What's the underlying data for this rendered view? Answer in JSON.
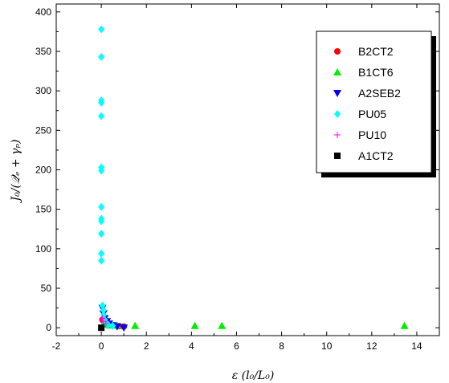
{
  "chart_data": {
    "type": "scatter",
    "xlabel": "ε (l₀/L₀)",
    "ylabel": "J₀/(𝒬ₑ + γₚ)",
    "xlim": [
      -2,
      15
    ],
    "ylim": [
      -10,
      410
    ],
    "xticks": [
      -2,
      0,
      2,
      4,
      6,
      8,
      10,
      12,
      14
    ],
    "yticks": [
      0,
      50,
      100,
      150,
      200,
      250,
      300,
      350,
      400
    ],
    "legend": "top-right",
    "grid": false,
    "series": [
      {
        "name": "B2CT2",
        "marker": "circle",
        "color": "#ff0000",
        "points": [
          [
            0.05,
            10
          ],
          [
            0.15,
            6
          ],
          [
            0.3,
            4
          ],
          [
            0.5,
            3
          ],
          [
            0.8,
            2
          ],
          [
            1.0,
            1.5
          ]
        ]
      },
      {
        "name": "B1CT6",
        "marker": "triangle-up",
        "color": "#00ee00",
        "points": [
          [
            0.1,
            4
          ],
          [
            0.4,
            3
          ],
          [
            0.7,
            3
          ],
          [
            1.5,
            2.5
          ],
          [
            4.15,
            2.5
          ],
          [
            5.35,
            2.5
          ],
          [
            13.45,
            2.5
          ]
        ]
      },
      {
        "name": "A2SEB2",
        "marker": "triangle-down",
        "color": "#0000ee",
        "points": [
          [
            0.05,
            25
          ],
          [
            0.1,
            18
          ],
          [
            0.15,
            12
          ],
          [
            0.25,
            8
          ],
          [
            0.35,
            5
          ],
          [
            0.5,
            3
          ],
          [
            0.7,
            1.5
          ],
          [
            1.0,
            0
          ]
        ]
      },
      {
        "name": "PU05",
        "marker": "diamond",
        "color": "#00ffff",
        "points": [
          [
            0,
            378
          ],
          [
            0,
            343
          ],
          [
            0,
            288
          ],
          [
            0,
            285
          ],
          [
            0,
            268
          ],
          [
            0,
            203
          ],
          [
            0,
            199
          ],
          [
            0,
            153
          ],
          [
            0,
            138
          ],
          [
            0,
            135
          ],
          [
            0,
            119
          ],
          [
            0,
            94
          ],
          [
            0,
            85
          ],
          [
            0.05,
            28
          ],
          [
            0.1,
            22
          ],
          [
            0.1,
            16
          ],
          [
            0.15,
            10
          ],
          [
            0.2,
            6
          ],
          [
            0.3,
            4
          ],
          [
            0.5,
            2.5
          ]
        ]
      },
      {
        "name": "PU10",
        "marker": "plus",
        "color": "#ff00ff",
        "points": [
          [
            0.05,
            12
          ],
          [
            0.1,
            8
          ],
          [
            0.2,
            5
          ]
        ]
      },
      {
        "name": "A1CT2",
        "marker": "square",
        "color": "#000000",
        "points": [
          [
            0,
            0
          ]
        ]
      }
    ]
  }
}
